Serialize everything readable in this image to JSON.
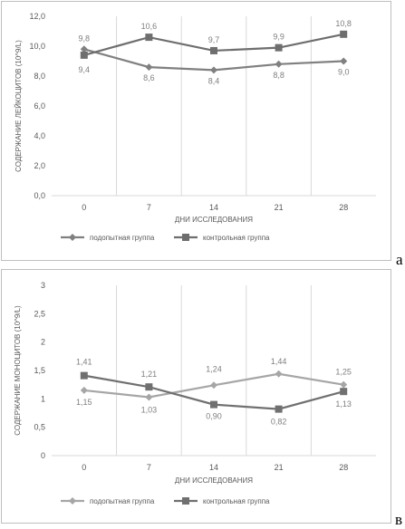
{
  "chart_data": [
    {
      "type": "line",
      "panel_letter": "а",
      "categories": [
        "0",
        "7",
        "14",
        "21",
        "28"
      ],
      "xlabel": "ДНИ ИССЛЕДОВАНИЯ",
      "ylabel": "СОДЕРЖАНИЕ ЛЕЙКОЦИТОВ (10^9/L)",
      "ylim": [
        0,
        12
      ],
      "yticks": [
        "0,0",
        "2,0",
        "4,0",
        "6,0",
        "8,0",
        "10,0",
        "12,0"
      ],
      "grid": "vertical",
      "legend": "bottom",
      "series": [
        {
          "name": "подопытная группа",
          "marker": "diamond",
          "color": "#808080",
          "values": [
            9.8,
            8.6,
            8.4,
            8.8,
            9.0
          ],
          "labels": [
            "9,8",
            "8,6",
            "8,4",
            "8,8",
            "9,0"
          ]
        },
        {
          "name": "контрольная группа",
          "marker": "square",
          "color": "#6e6e6e",
          "values": [
            9.4,
            10.6,
            9.7,
            9.9,
            10.8
          ],
          "labels": [
            "9,4",
            "10,6",
            "9,7",
            "9,9",
            "10,8"
          ]
        }
      ]
    },
    {
      "type": "line",
      "panel_letter": "в",
      "categories": [
        "0",
        "7",
        "14",
        "21",
        "28"
      ],
      "xlabel": "ДНИ ИССЛЕДОВАНИЯ",
      "ylabel": "СОДЕРЖАНИЕ МОНОЦИТОВ (10^9/L)",
      "ylim": [
        0,
        3
      ],
      "yticks": [
        "0",
        "0,5",
        "1",
        "1,5",
        "2",
        "2,5",
        "3"
      ],
      "grid": "vertical",
      "legend": "bottom",
      "series": [
        {
          "name": "подопытная группа",
          "marker": "diamond",
          "color": "#a6a6a6",
          "values": [
            1.15,
            1.03,
            1.24,
            1.44,
            1.25
          ],
          "labels": [
            "1,15",
            "1,03",
            "1,24",
            "1,44",
            "1,25"
          ]
        },
        {
          "name": "контрольная группа",
          "marker": "square",
          "color": "#707070",
          "values": [
            1.41,
            1.21,
            0.9,
            0.82,
            1.13
          ],
          "labels": [
            "1,41",
            "1,21",
            "0,90",
            "0,82",
            "1,13"
          ]
        }
      ]
    }
  ]
}
